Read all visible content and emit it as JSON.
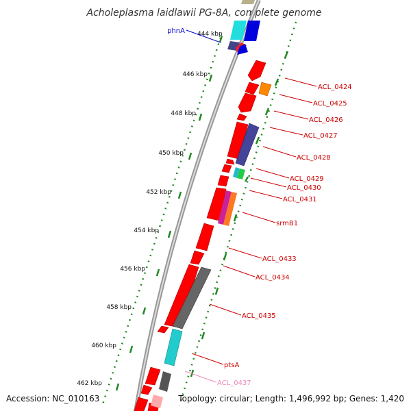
{
  "title": "Acholeplasma laidlawii PG-8A, complete genome",
  "accession": "Accession: NC_010163",
  "summary": "Topology: circular; Length: 1,496,992 bp; Genes: 1,420",
  "ticks": [
    "444 kbp",
    "446 kbp",
    "448 kbp",
    "450 kbp",
    "452 kbp",
    "454 kbp",
    "456 kbp",
    "458 kbp",
    "460 kbp",
    "462 kbp"
  ],
  "genes": [
    {
      "label": "phnA",
      "color": "#0000cc"
    },
    {
      "label": "ACL_0424",
      "color": "#cc0000"
    },
    {
      "label": "ACL_0425",
      "color": "#cc0000"
    },
    {
      "label": "ACL_0426",
      "color": "#cc0000"
    },
    {
      "label": "ACL_0427",
      "color": "#cc0000"
    },
    {
      "label": "ACL_0428",
      "color": "#cc0000"
    },
    {
      "label": "ACL_0429",
      "color": "#cc0000"
    },
    {
      "label": "ACL_0430",
      "color": "#cc0000"
    },
    {
      "label": "ACL_0431",
      "color": "#cc0000"
    },
    {
      "label": "srmB1",
      "color": "#cc0000"
    },
    {
      "label": "ACL_0433",
      "color": "#cc0000"
    },
    {
      "label": "ACL_0434",
      "color": "#cc0000"
    },
    {
      "label": "ACL_0435",
      "color": "#cc0000"
    },
    {
      "label": "ptsA",
      "color": "#cc0000"
    },
    {
      "label": "ACL_0437",
      "color": "#ee88bb"
    }
  ]
}
